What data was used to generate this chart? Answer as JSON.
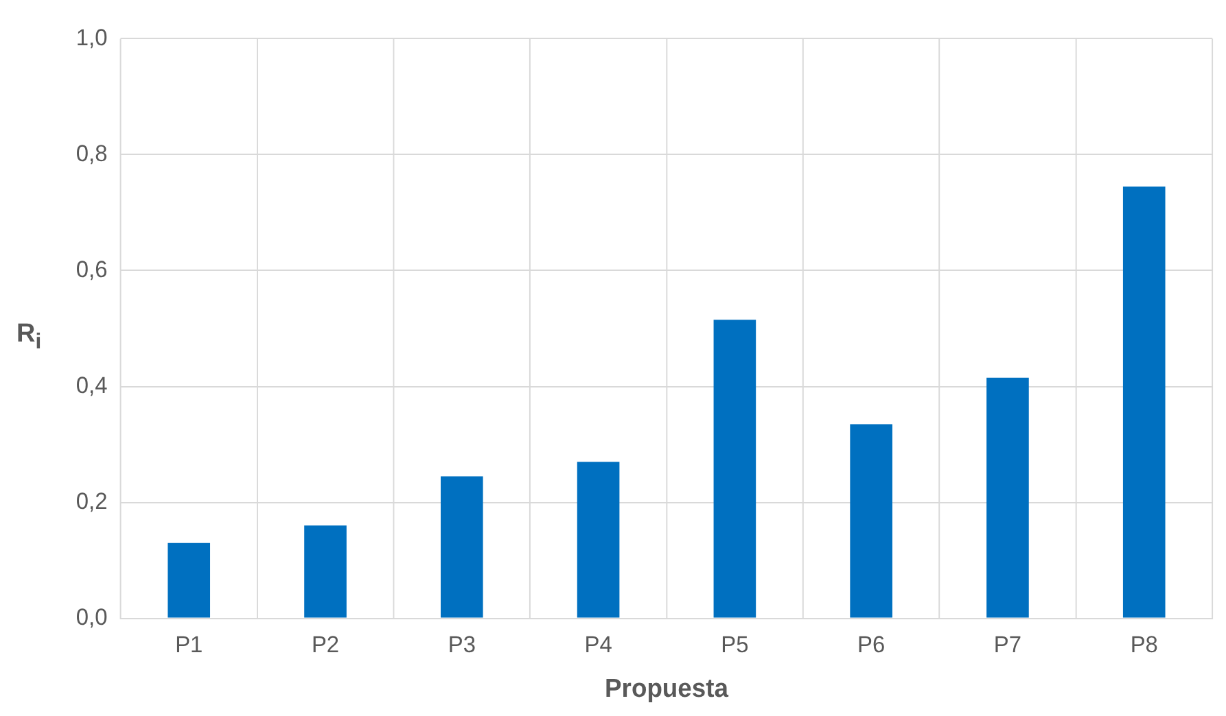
{
  "chart_data": {
    "type": "bar",
    "xlabel": "Propuesta",
    "ylabel": "R$_{i}$",
    "categories": [
      "P1",
      "P2",
      "P3",
      "P4",
      "P5",
      "P6",
      "P7",
      "P8"
    ],
    "values": [
      0.13,
      0.16,
      0.245,
      0.27,
      0.515,
      0.335,
      0.415,
      0.745
    ],
    "color": "#0070c0",
    "ylim": [
      0,
      1
    ],
    "yticks": [
      {
        "value": 0,
        "label": "0,0"
      },
      {
        "value": 0.2,
        "label": "0,2"
      },
      {
        "value": 0.4,
        "label": "0,4"
      },
      {
        "value": 0.6,
        "label": "0,6"
      },
      {
        "value": 0.8,
        "label": "0,8"
      },
      {
        "value": 1,
        "label": "1,0"
      }
    ],
    "grid": true
  }
}
